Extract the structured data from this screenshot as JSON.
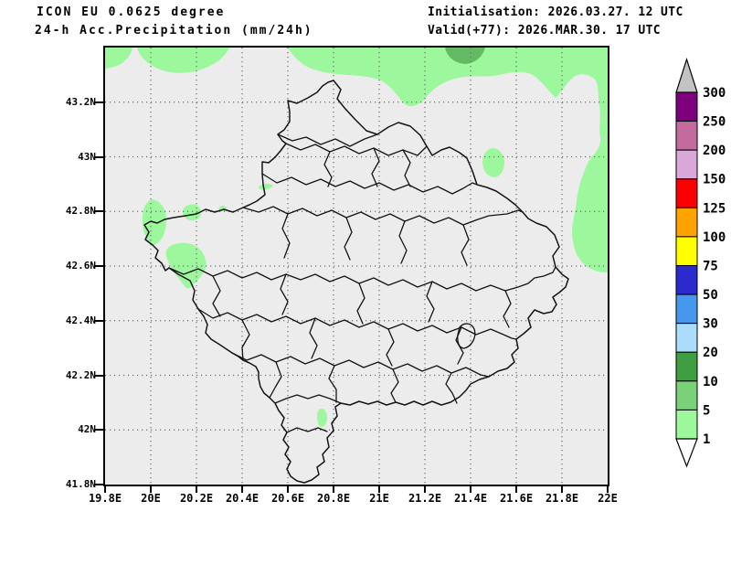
{
  "header": {
    "model_title": "ICON EU 0.0625 degree",
    "product_title": "24-h Acc.Precipitation (mm/24h)",
    "initialisation": "Initialisation: 2026.03.27. 12 UTC",
    "valid": "Valid(+77): 2026.MAR.30. 17 UTC"
  },
  "map": {
    "x_tick_labels": [
      "19.8E",
      "20E",
      "20.2E",
      "20.4E",
      "20.6E",
      "20.8E",
      "21E",
      "21.2E",
      "21.4E",
      "21.6E",
      "21.8E",
      "22E"
    ],
    "y_tick_labels": [
      "43.2N",
      "43N",
      "42.8N",
      "42.6N",
      "42.4N",
      "42.2N",
      "42N",
      "41.8N"
    ],
    "background_color": "#ececec",
    "border_color": "#141414",
    "precip_light_color": "#9df79d",
    "precip_medium_color": "#63ba63"
  },
  "colorbar": {
    "tick_labels": [
      "300",
      "250",
      "200",
      "150",
      "125",
      "100",
      "75",
      "50",
      "30",
      "20",
      "10",
      "5",
      "1"
    ],
    "bands_top_to_bottom": [
      "#7d007d",
      "#c36b9f",
      "#d9a8d9",
      "#fa0000",
      "#ffa300",
      "#ffff00",
      "#2a2ace",
      "#4697ee",
      "#aadcfb",
      "#3f9e3f",
      "#79d279",
      "#9df79d"
    ],
    "above_max_color": "#c3c3c3",
    "below_min_color": "#ffffff"
  }
}
